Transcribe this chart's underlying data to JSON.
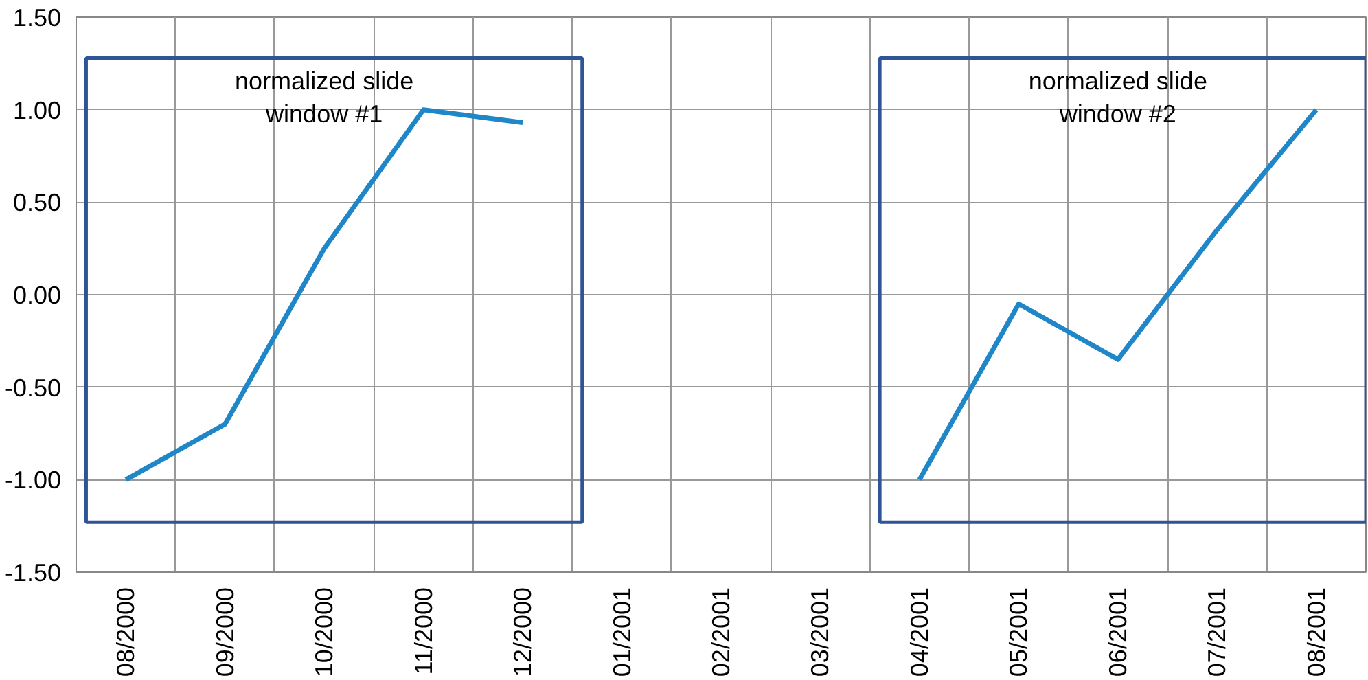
{
  "chart_data": {
    "type": "line",
    "categories": [
      "08/2000",
      "09/2000",
      "10/2000",
      "11/2000",
      "12/2000",
      "01/2001",
      "02/2001",
      "03/2001",
      "04/2001",
      "05/2001",
      "06/2001",
      "07/2001",
      "08/2001"
    ],
    "series": [
      {
        "color": "#1f86c8",
        "values": [
          -1.0,
          -0.7,
          0.25,
          1.0,
          0.93,
          null,
          null,
          null,
          -1.0,
          -0.05,
          -0.35,
          0.35,
          1.0
        ]
      }
    ],
    "ylim": [
      -1.5,
      1.5
    ],
    "yticks": [
      {
        "value": -1.5,
        "label": "-1.50"
      },
      {
        "value": -1.0,
        "label": "-1.00"
      },
      {
        "value": -0.5,
        "label": "-0.50"
      },
      {
        "value": 0,
        "label": "0.00"
      },
      {
        "value": 0.5,
        "label": "0.50"
      },
      {
        "value": 1.0,
        "label": "1.00"
      },
      {
        "value": 1.5,
        "label": "1.50"
      }
    ],
    "annotations": [
      "normalized slide window #1",
      "normalized slide window #2"
    ],
    "grid": true,
    "line_style": "solid"
  }
}
